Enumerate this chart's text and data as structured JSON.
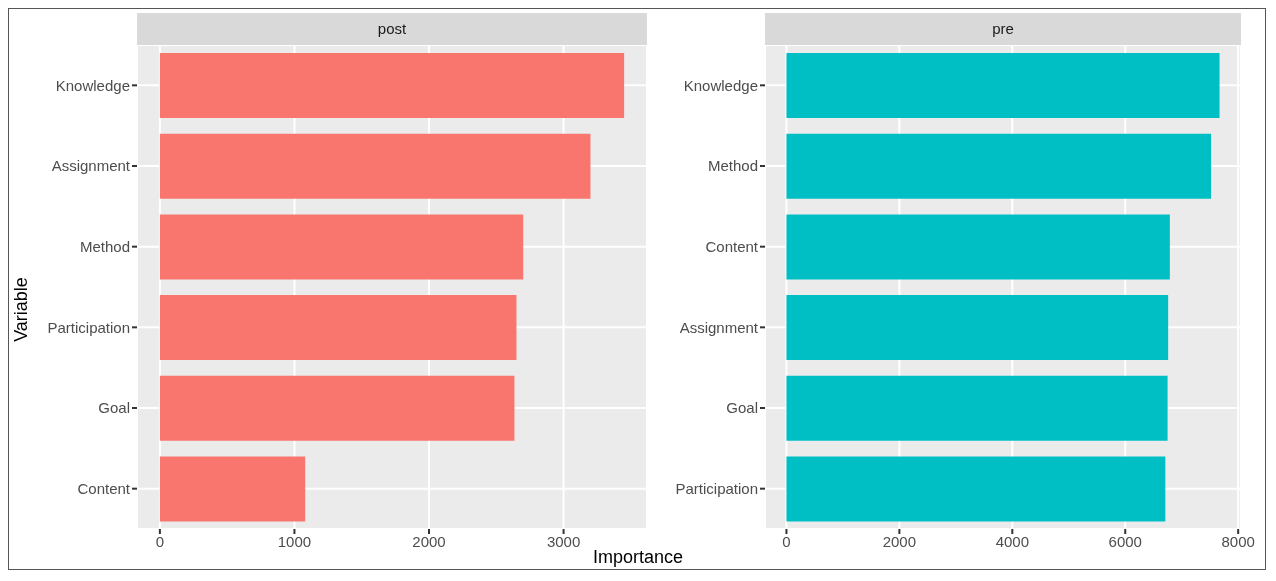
{
  "chart_data": [
    {
      "type": "bar",
      "orientation": "horizontal",
      "title": "post",
      "xlabel": "Importance",
      "ylabel": "Variable",
      "categories": [
        "Knowledge",
        "Assignment",
        "Method",
        "Participation",
        "Goal",
        "Content"
      ],
      "values": [
        3450,
        3200,
        2700,
        2650,
        2635,
        1080
      ],
      "color": "#f8766d",
      "xlim": [
        -170,
        3620
      ],
      "xticks": [
        0,
        1000,
        2000,
        3000
      ],
      "grid": true
    },
    {
      "type": "bar",
      "orientation": "horizontal",
      "title": "pre",
      "categories": [
        "Knowledge",
        "Method",
        "Content",
        "Assignment",
        "Goal",
        "Participation"
      ],
      "values": [
        7670,
        7520,
        6790,
        6760,
        6750,
        6710
      ],
      "color": "#00bfc4",
      "xlim": [
        -380,
        8050
      ],
      "xticks": [
        0,
        2000,
        4000,
        6000,
        8000
      ],
      "grid": true
    }
  ]
}
